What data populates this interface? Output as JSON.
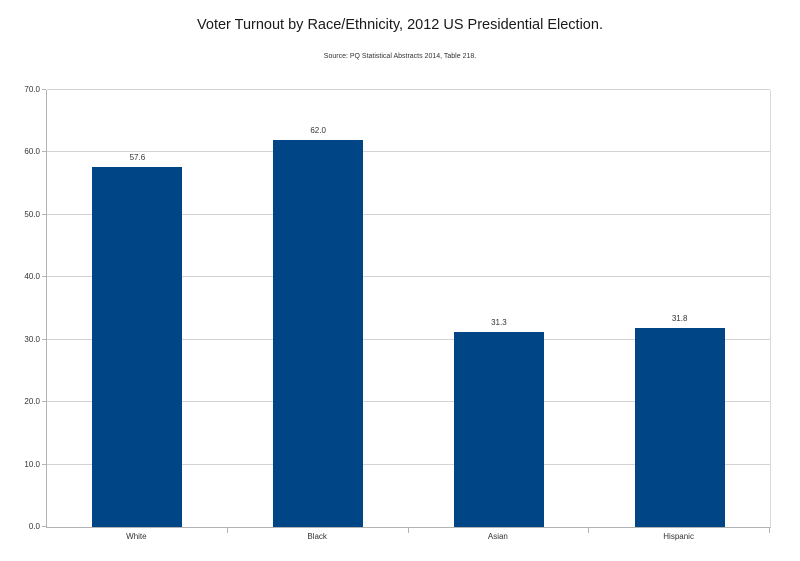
{
  "chart_data": {
    "type": "bar",
    "title": "Voter Turnout by Race/Ethnicity, 2012 US Presidential Election.",
    "subtitle": "Source: PQ Statistical Abstracts 2014, Table 218.",
    "categories": [
      "White",
      "Black",
      "Asian",
      "Hispanic"
    ],
    "values": [
      57.6,
      62.0,
      31.3,
      31.8
    ],
    "value_labels": [
      "57.6",
      "62.0",
      "31.3",
      "31.8"
    ],
    "xlabel": "",
    "ylabel": "",
    "ylim": [
      0,
      70
    ],
    "ytick_step": 10,
    "ytick_labels": [
      "0.0",
      "10.0",
      "20.0",
      "30.0",
      "40.0",
      "50.0",
      "60.0",
      "70.0"
    ],
    "grid": "horizontal",
    "legend_position": "none",
    "colors": {
      "bar": "#004586",
      "grid": "#d3d3d3",
      "axis": "#b3b3b3",
      "text": "#333333",
      "title_text": "#1a1a1a",
      "background": "#ffffff"
    }
  }
}
